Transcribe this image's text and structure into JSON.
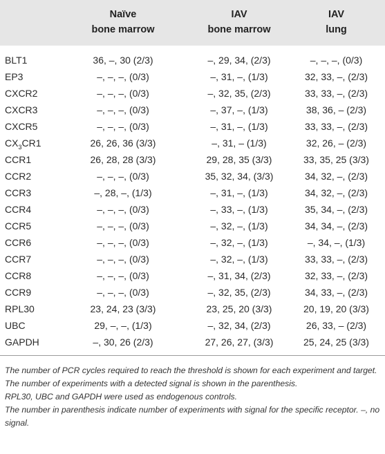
{
  "headers": [
    {
      "line1": "Naïve",
      "line2": "bone marrow"
    },
    {
      "line1": "IAV",
      "line2": "bone marrow"
    },
    {
      "line1": "IAV",
      "line2": "lung"
    }
  ],
  "rows": [
    {
      "target": "BLT1",
      "c1": "36, –, 30 (2/3)",
      "c2": "–, 29, 34, (2/3)",
      "c3": "–, –, –, (0/3)"
    },
    {
      "target": "EP3",
      "c1": "–, –, –, (0/3)",
      "c2": "–, 31, –, (1/3)",
      "c3": "32, 33, –, (2/3)"
    },
    {
      "target": "CXCR2",
      "c1": "–, –, –, (0/3)",
      "c2": "–, 32, 35, (2/3)",
      "c3": "33, 33, –, (2/3)"
    },
    {
      "target": "CXCR3",
      "c1": "–, –, –, (0/3)",
      "c2": "–, 37, –, (1/3)",
      "c3": "38, 36, – (2/3)"
    },
    {
      "target": "CXCR5",
      "c1": "–, –, –, (0/3)",
      "c2": "–, 31, –, (1/3)",
      "c3": "33, 33, –, (2/3)"
    },
    {
      "target_pre": "CX",
      "target_sub": "3",
      "target_post": "CR1",
      "c1": "26, 26, 36 (3/3)",
      "c2": "–, 31, – (1/3)",
      "c3": "32, 26, – (2/3)"
    },
    {
      "target": "CCR1",
      "c1": "26, 28, 28 (3/3)",
      "c2": "29, 28, 35 (3/3)",
      "c3": "33, 35, 25 (3/3)"
    },
    {
      "target": "CCR2",
      "c1": "–, –, –, (0/3)",
      "c2": "35, 32, 34, (3/3)",
      "c3": "34, 32, –, (2/3)"
    },
    {
      "target": "CCR3",
      "c1": "–, 28, –, (1/3)",
      "c2": "–, 31, –, (1/3)",
      "c3": "34, 32, –, (2/3)"
    },
    {
      "target": "CCR4",
      "c1": "–, –, –, (0/3)",
      "c2": "–, 33, –, (1/3)",
      "c3": "35, 34, –, (2/3)"
    },
    {
      "target": "CCR5",
      "c1": "–, –, –, (0/3)",
      "c2": "–, 32, –, (1/3)",
      "c3": "34, 34, –, (2/3)"
    },
    {
      "target": "CCR6",
      "c1": "–, –, –, (0/3)",
      "c2": "–, 32, –, (1/3)",
      "c3": "–, 34, –, (1/3)"
    },
    {
      "target": "CCR7",
      "c1": "–, –, –, (0/3)",
      "c2": "–, 32, –, (1/3)",
      "c3": "33, 33, –, (2/3)"
    },
    {
      "target": "CCR8",
      "c1": "–, –, –, (0/3)",
      "c2": "–, 31, 34, (2/3)",
      "c3": "32, 33, –, (2/3)"
    },
    {
      "target": "CCR9",
      "c1": "–, –, –, (0/3)",
      "c2": "–, 32, 35, (2/3)",
      "c3": "34, 33, –, (2/3)"
    },
    {
      "target": "RPL30",
      "c1": "23, 24, 23 (3/3)",
      "c2": "23, 25, 20 (3/3)",
      "c3": "20, 19, 20 (3/3)"
    },
    {
      "target": "UBC",
      "c1": "29, –, –, (1/3)",
      "c2": "–, 32, 34, (2/3)",
      "c3": "26, 33, – (2/3)"
    },
    {
      "target": "GAPDH",
      "c1": "–, 30, 26 (2/3)",
      "c2": "27, 26, 27, (3/3)",
      "c3": "25, 24, 25 (3/3)"
    }
  ],
  "notes": [
    "The number of PCR cycles required to reach the threshold is shown for each experiment and target. The number of experiments with a detected signal is shown in the parenthesis.",
    "RPL30, UBC and GAPDH were used as endogenous controls.",
    "The number in parenthesis indicate number of experiments with signal for the specific receptor. –, no signal."
  ]
}
